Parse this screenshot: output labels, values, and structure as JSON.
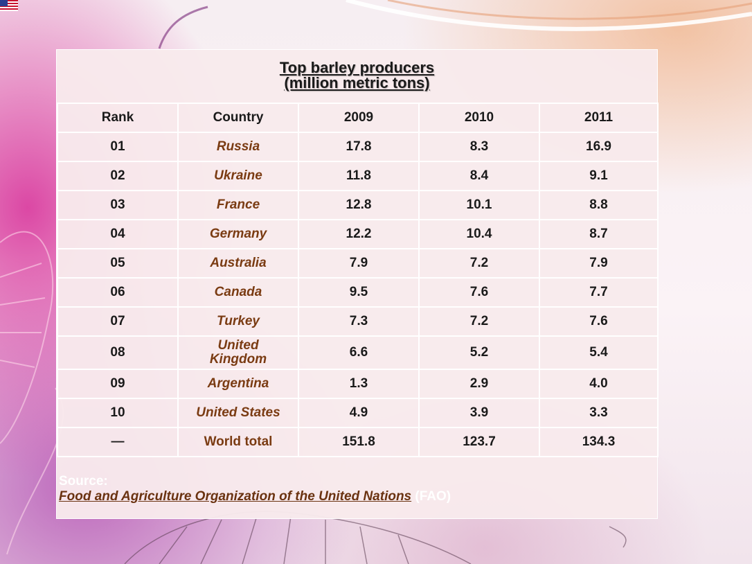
{
  "title": {
    "line1": "Top barley producers",
    "line2": "(million metric tons)"
  },
  "columns": [
    "Rank",
    "Country",
    "2009",
    "2010",
    "2011"
  ],
  "rows": [
    {
      "rank": "01",
      "country": "Russia",
      "y2009": "17.8",
      "y2010": "8.3",
      "y2011": "16.9"
    },
    {
      "rank": "02",
      "country": "Ukraine",
      "y2009": "11.8",
      "y2010": "8.4",
      "y2011": "9.1"
    },
    {
      "rank": "03",
      "country": "France",
      "y2009": "12.8",
      "y2010": "10.1",
      "y2011": "8.8"
    },
    {
      "rank": "04",
      "country": "Germany",
      "y2009": "12.2",
      "y2010": "10.4",
      "y2011": "8.7"
    },
    {
      "rank": "05",
      "country": "Australia",
      "y2009": "7.9",
      "y2010": "7.2",
      "y2011": "7.9"
    },
    {
      "rank": "06",
      "country": "Canada",
      "y2009": "9.5",
      "y2010": "7.6",
      "y2011": "7.7"
    },
    {
      "rank": "07",
      "country": "Turkey",
      "y2009": "7.3",
      "y2010": "7.2",
      "y2011": "7.6"
    },
    {
      "rank": "08",
      "country": "United Kingdom",
      "y2009": "6.6",
      "y2010": "5.2",
      "y2011": "5.4"
    },
    {
      "rank": "09",
      "country": "Argentina",
      "y2009": "1.3",
      "y2010": "2.9",
      "y2011": "4.0"
    },
    {
      "rank": "10",
      "country": "United States",
      "y2009": "4.9",
      "y2010": "3.9",
      "y2011": "3.3"
    },
    {
      "rank": "—",
      "country": "World total",
      "y2009": "151.8",
      "y2010": "123.7",
      "y2011": "134.3"
    }
  ],
  "source": {
    "label": "Source:",
    "link_text": "Food and Agriculture Organization of the United Nations",
    "abbr": "(FAO)"
  },
  "colors": {
    "panel": "#f8eaec",
    "country_text": "#7a3b12",
    "link": "#6a3210"
  }
}
